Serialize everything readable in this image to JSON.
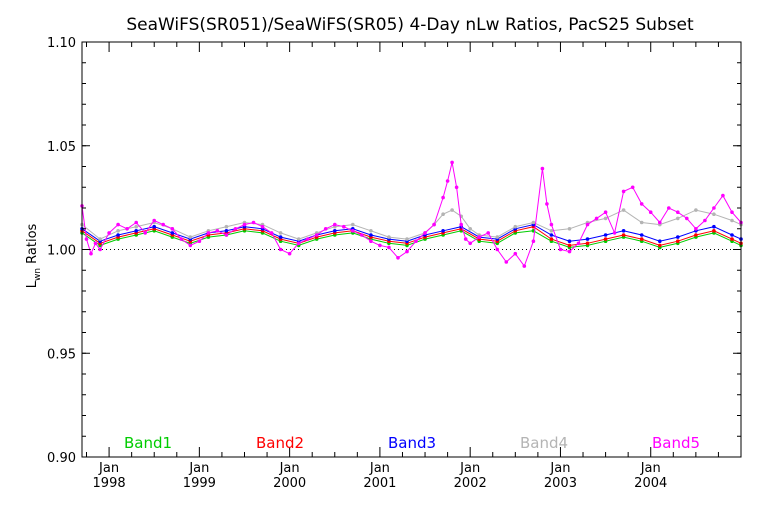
{
  "chart_data": {
    "type": "line",
    "title": "SeaWiFS(SR051)/SeaWiFS(SR05) 4-Day nLw Ratios, PacS25 Subset",
    "ylabel": "L_wn Ratios",
    "ylabel_main": "L",
    "ylabel_sub": "wn",
    "ylabel_rest": " Ratios",
    "xlabel": "",
    "xlim": [
      1997.7,
      2005.0
    ],
    "ylim": [
      0.9,
      1.1
    ],
    "reference_line": 1.0,
    "y_ticks": [
      {
        "value": 0.9,
        "label": "0.90"
      },
      {
        "value": 0.95,
        "label": "0.95"
      },
      {
        "value": 1.0,
        "label": "1.00"
      },
      {
        "value": 1.05,
        "label": "1.05"
      },
      {
        "value": 1.1,
        "label": "1.10"
      }
    ],
    "x_ticks": [
      {
        "value": 1998.0,
        "month": "Jan",
        "year": "1998"
      },
      {
        "value": 1999.0,
        "month": "Jan",
        "year": "1999"
      },
      {
        "value": 2000.0,
        "month": "Jan",
        "year": "2000"
      },
      {
        "value": 2001.0,
        "month": "Jan",
        "year": "2001"
      },
      {
        "value": 2002.0,
        "month": "Jan",
        "year": "2002"
      },
      {
        "value": 2003.0,
        "month": "Jan",
        "year": "2003"
      },
      {
        "value": 2004.0,
        "month": "Jan",
        "year": "2004"
      }
    ],
    "legend_placement": "bottom",
    "series": [
      {
        "name": "Band1",
        "color": "#00cc00",
        "x": [
          1997.7,
          1997.9,
          1998.1,
          1998.3,
          1998.5,
          1998.7,
          1998.9,
          1999.1,
          1999.3,
          1999.5,
          1999.7,
          1999.9,
          2000.1,
          2000.3,
          2000.5,
          2000.7,
          2000.9,
          2001.1,
          2001.3,
          2001.5,
          2001.7,
          2001.9,
          2002.1,
          2002.3,
          2002.5,
          2002.7,
          2002.9,
          2003.1,
          2003.3,
          2003.5,
          2003.7,
          2003.9,
          2004.1,
          2004.3,
          2004.5,
          2004.7,
          2004.9,
          2005.0
        ],
        "y": [
          1.008,
          1.002,
          1.005,
          1.007,
          1.009,
          1.006,
          1.003,
          1.006,
          1.007,
          1.009,
          1.008,
          1.004,
          1.002,
          1.005,
          1.007,
          1.008,
          1.005,
          1.003,
          1.002,
          1.005,
          1.007,
          1.009,
          1.004,
          1.003,
          1.008,
          1.009,
          1.004,
          1.001,
          1.002,
          1.004,
          1.006,
          1.004,
          1.001,
          1.003,
          1.006,
          1.008,
          1.004,
          1.002
        ]
      },
      {
        "name": "Band2",
        "color": "#ff0000",
        "x": [
          1997.7,
          1997.9,
          1998.1,
          1998.3,
          1998.5,
          1998.7,
          1998.9,
          1999.1,
          1999.3,
          1999.5,
          1999.7,
          1999.9,
          2000.1,
          2000.3,
          2000.5,
          2000.7,
          2000.9,
          2001.1,
          2001.3,
          2001.5,
          2001.7,
          2001.9,
          2002.1,
          2002.3,
          2002.5,
          2002.7,
          2002.9,
          2003.1,
          2003.3,
          2003.5,
          2003.7,
          2003.9,
          2004.1,
          2004.3,
          2004.5,
          2004.7,
          2004.9,
          2005.0
        ],
        "y": [
          1.009,
          1.003,
          1.006,
          1.008,
          1.01,
          1.007,
          1.004,
          1.007,
          1.008,
          1.01,
          1.009,
          1.005,
          1.003,
          1.006,
          1.008,
          1.009,
          1.006,
          1.004,
          1.003,
          1.006,
          1.008,
          1.01,
          1.005,
          1.004,
          1.009,
          1.011,
          1.005,
          1.002,
          1.003,
          1.005,
          1.007,
          1.005,
          1.002,
          1.004,
          1.007,
          1.009,
          1.005,
          1.003
        ]
      },
      {
        "name": "Band3",
        "color": "#0000ff",
        "x": [
          1997.7,
          1997.9,
          1998.1,
          1998.3,
          1998.5,
          1998.7,
          1998.9,
          1999.1,
          1999.3,
          1999.5,
          1999.7,
          1999.9,
          2000.1,
          2000.3,
          2000.5,
          2000.7,
          2000.9,
          2001.1,
          2001.3,
          2001.5,
          2001.7,
          2001.9,
          2002.1,
          2002.3,
          2002.5,
          2002.7,
          2002.9,
          2003.1,
          2003.3,
          2003.5,
          2003.7,
          2003.9,
          2004.1,
          2004.3,
          2004.5,
          2004.7,
          2004.9,
          2005.0
        ],
        "y": [
          1.01,
          1.004,
          1.007,
          1.009,
          1.011,
          1.008,
          1.005,
          1.008,
          1.009,
          1.011,
          1.01,
          1.006,
          1.004,
          1.007,
          1.009,
          1.01,
          1.007,
          1.005,
          1.004,
          1.007,
          1.009,
          1.011,
          1.006,
          1.005,
          1.01,
          1.012,
          1.007,
          1.004,
          1.005,
          1.007,
          1.009,
          1.007,
          1.004,
          1.006,
          1.009,
          1.011,
          1.007,
          1.005
        ]
      },
      {
        "name": "Band4",
        "color": "#b4b4b4",
        "x": [
          1997.7,
          1997.9,
          1998.1,
          1998.3,
          1998.5,
          1998.7,
          1998.9,
          1999.1,
          1999.3,
          1999.5,
          1999.7,
          1999.9,
          2000.1,
          2000.3,
          2000.5,
          2000.7,
          2000.9,
          2001.1,
          2001.3,
          2001.5,
          2001.6,
          2001.7,
          2001.8,
          2001.9,
          2002.0,
          2002.1,
          2002.3,
          2002.5,
          2002.7,
          2002.9,
          2003.1,
          2003.3,
          2003.5,
          2003.7,
          2003.9,
          2004.1,
          2004.3,
          2004.5,
          2004.7,
          2004.9,
          2005.0
        ],
        "y": [
          1.012,
          1.005,
          1.009,
          1.011,
          1.013,
          1.01,
          1.006,
          1.009,
          1.011,
          1.013,
          1.012,
          1.008,
          1.005,
          1.008,
          1.011,
          1.012,
          1.009,
          1.006,
          1.005,
          1.008,
          1.012,
          1.017,
          1.019,
          1.016,
          1.01,
          1.007,
          1.006,
          1.011,
          1.013,
          1.009,
          1.01,
          1.013,
          1.015,
          1.019,
          1.013,
          1.012,
          1.015,
          1.019,
          1.017,
          1.014,
          1.012
        ]
      },
      {
        "name": "Band5",
        "color": "#ff00ff",
        "x": [
          1997.7,
          1997.75,
          1997.8,
          1997.85,
          1997.9,
          1998.0,
          1998.1,
          1998.2,
          1998.3,
          1998.4,
          1998.5,
          1998.6,
          1998.7,
          1998.8,
          1998.9,
          1999.0,
          1999.1,
          1999.2,
          1999.3,
          1999.4,
          1999.5,
          1999.6,
          1999.7,
          1999.8,
          1999.9,
          2000.0,
          2000.1,
          2000.2,
          2000.3,
          2000.4,
          2000.5,
          2000.6,
          2000.7,
          2000.8,
          2000.9,
          2001.0,
          2001.1,
          2001.2,
          2001.3,
          2001.4,
          2001.5,
          2001.6,
          2001.7,
          2001.75,
          2001.8,
          2001.85,
          2001.9,
          2001.95,
          2002.0,
          2002.1,
          2002.2,
          2002.3,
          2002.4,
          2002.5,
          2002.6,
          2002.7,
          2002.8,
          2002.85,
          2002.9,
          2003.0,
          2003.1,
          2003.2,
          2003.3,
          2003.4,
          2003.5,
          2003.6,
          2003.7,
          2003.8,
          2003.9,
          2004.0,
          2004.1,
          2004.2,
          2004.3,
          2004.4,
          2004.5,
          2004.6,
          2004.7,
          2004.8,
          2004.9,
          2005.0
        ],
        "y": [
          1.021,
          1.005,
          0.998,
          1.003,
          1.0,
          1.008,
          1.012,
          1.01,
          1.013,
          1.008,
          1.014,
          1.012,
          1.01,
          1.005,
          1.002,
          1.004,
          1.008,
          1.009,
          1.007,
          1.01,
          1.012,
          1.013,
          1.011,
          1.008,
          1.0,
          0.998,
          1.003,
          1.005,
          1.007,
          1.01,
          1.012,
          1.011,
          1.009,
          1.007,
          1.004,
          1.002,
          1.001,
          0.996,
          0.999,
          1.004,
          1.008,
          1.012,
          1.025,
          1.033,
          1.042,
          1.03,
          1.012,
          1.005,
          1.003,
          1.006,
          1.008,
          1.0,
          0.994,
          0.998,
          0.992,
          1.004,
          1.039,
          1.022,
          1.012,
          1.0,
          0.999,
          1.003,
          1.012,
          1.015,
          1.018,
          1.008,
          1.028,
          1.03,
          1.022,
          1.018,
          1.013,
          1.02,
          1.018,
          1.015,
          1.01,
          1.014,
          1.02,
          1.026,
          1.018,
          1.013
        ]
      }
    ]
  }
}
